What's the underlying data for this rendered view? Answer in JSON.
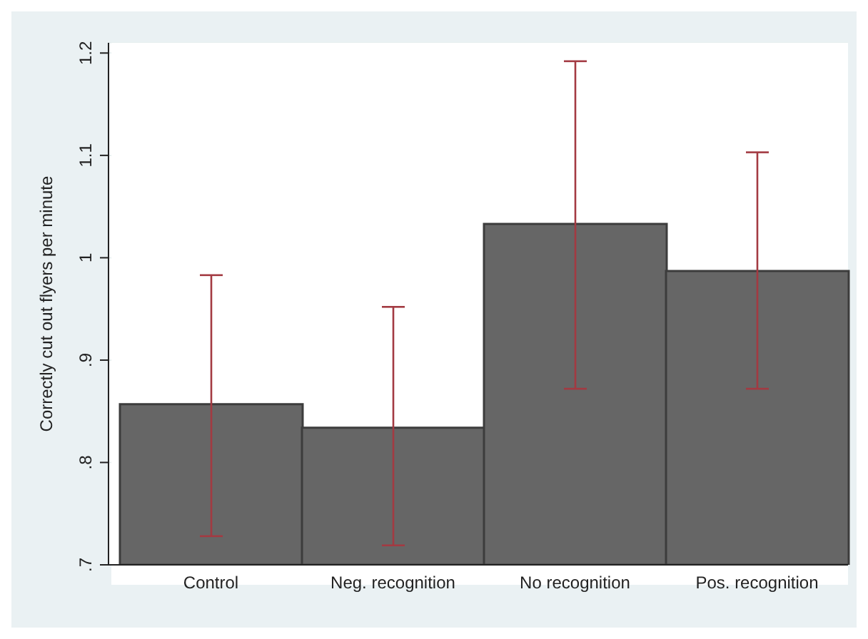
{
  "chart_data": {
    "type": "bar",
    "ylabel": "Correctly cut out flyers per minute",
    "categories": [
      "Control",
      "Neg. recognition",
      "No recognition",
      "Pos. recognition"
    ],
    "values": [
      0.857,
      0.834,
      1.033,
      0.987
    ],
    "errors": [
      [
        0.728,
        0.983
      ],
      [
        0.719,
        0.952
      ],
      [
        0.872,
        1.192
      ],
      [
        0.872,
        1.103
      ]
    ],
    "color": "#666666",
    "ylim": [
      0.7,
      1.21
    ],
    "yticks": [
      {
        "value": 0.7,
        "label": ".7"
      },
      {
        "value": 0.8,
        "label": ".8"
      },
      {
        "value": 0.9,
        "label": ".9"
      },
      {
        "value": 1,
        "label": "1"
      },
      {
        "value": 1.1,
        "label": "1.1"
      },
      {
        "value": 1.2,
        "label": "1.2"
      }
    ],
    "grid": "y"
  }
}
